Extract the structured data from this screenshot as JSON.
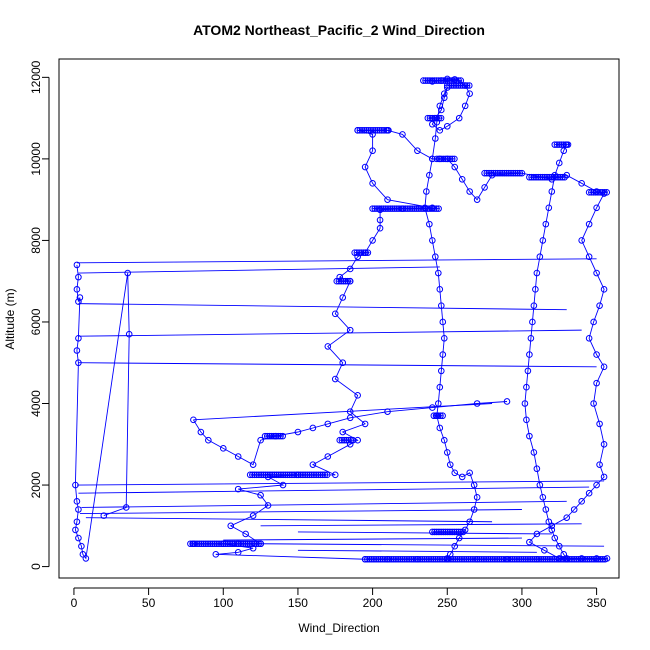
{
  "chart_data": {
    "type": "scatter",
    "title": "ATOM2 Northeast_Pacific_2 Wind_Direction",
    "xlabel": "Wind_Direction",
    "ylabel": "Altitude (m)",
    "xlim": [
      -10,
      365
    ],
    "ylim": [
      -280,
      12450
    ],
    "x_ticks": [
      0,
      50,
      100,
      150,
      200,
      250,
      300,
      350
    ],
    "y_ticks": [
      0,
      2000,
      4000,
      6000,
      8000,
      10000,
      12000
    ],
    "grid": false,
    "marker": "open-circle",
    "connected_with_lines": true,
    "series_color": "#0000ff",
    "series": [
      {
        "name": "",
        "points": [
          [
            95,
            300
          ],
          [
            110,
            350
          ],
          [
            120,
            450
          ],
          [
            100,
            560
          ],
          [
            80,
            560
          ],
          [
            110,
            560
          ],
          [
            125,
            560
          ],
          [
            115,
            800
          ],
          [
            105,
            1000
          ],
          [
            120,
            1250
          ],
          [
            130,
            1500
          ],
          [
            125,
            1750
          ],
          [
            110,
            1900
          ],
          [
            140,
            2000
          ],
          [
            130,
            2200
          ],
          [
            150,
            2250
          ],
          [
            175,
            2250
          ],
          [
            160,
            2500
          ],
          [
            170,
            2700
          ],
          [
            185,
            3000
          ],
          [
            190,
            3100
          ],
          [
            180,
            3300
          ],
          [
            195,
            3500
          ],
          [
            185,
            3800
          ],
          [
            190,
            4200
          ],
          [
            175,
            4600
          ],
          [
            180,
            5000
          ],
          [
            170,
            5400
          ],
          [
            185,
            5800
          ],
          [
            175,
            6200
          ],
          [
            180,
            6600
          ],
          [
            185,
            7000
          ],
          [
            178,
            7100
          ],
          [
            185,
            7300
          ],
          [
            190,
            7600
          ],
          [
            195,
            7700
          ],
          [
            200,
            8000
          ],
          [
            205,
            8300
          ],
          [
            205,
            8500
          ],
          [
            205,
            8750
          ],
          [
            220,
            8780
          ],
          [
            240,
            8800
          ],
          [
            210,
            9000
          ],
          [
            200,
            9400
          ],
          [
            195,
            9800
          ],
          [
            200,
            10200
          ],
          [
            200,
            10600
          ],
          [
            190,
            10700
          ],
          [
            210,
            10700
          ],
          [
            220,
            10600
          ],
          [
            230,
            10200
          ],
          [
            240,
            10000
          ],
          [
            245,
            10000
          ],
          [
            250,
            10000
          ],
          [
            255,
            9800
          ],
          [
            260,
            9500
          ],
          [
            265,
            9200
          ],
          [
            270,
            9000
          ],
          [
            275,
            9300
          ],
          [
            280,
            9600
          ],
          [
            300,
            9650
          ],
          [
            320,
            9500
          ],
          [
            330,
            9600
          ],
          [
            340,
            9400
          ],
          [
            350,
            9200
          ],
          [
            355,
            9150
          ],
          [
            350,
            8800
          ],
          [
            345,
            8400
          ],
          [
            340,
            8000
          ],
          [
            345,
            7600
          ],
          [
            350,
            7200
          ],
          [
            355,
            6800
          ],
          [
            352,
            6400
          ],
          [
            348,
            6000
          ],
          [
            345,
            5600
          ],
          [
            350,
            5200
          ],
          [
            355,
            4900
          ],
          [
            350,
            4500
          ],
          [
            348,
            4000
          ],
          [
            352,
            3500
          ],
          [
            355,
            3000
          ],
          [
            352,
            2500
          ],
          [
            355,
            2200
          ],
          [
            350,
            2000
          ],
          [
            345,
            1800
          ],
          [
            340,
            1600
          ],
          [
            335,
            1400
          ],
          [
            330,
            1200
          ],
          [
            320,
            1000
          ],
          [
            310,
            800
          ],
          [
            305,
            600
          ],
          [
            315,
            400
          ],
          [
            325,
            200
          ],
          [
            340,
            200
          ],
          [
            350,
            200
          ],
          [
            357,
            200
          ],
          [
            330,
            180
          ],
          [
            310,
            180
          ],
          [
            290,
            180
          ],
          [
            270,
            180
          ],
          [
            250,
            180
          ],
          [
            230,
            180
          ],
          [
            210,
            180
          ],
          [
            195,
            180
          ]
        ]
      },
      {
        "name": "",
        "points": [
          [
            240,
            11900
          ],
          [
            246,
            11920
          ],
          [
            250,
            11960
          ],
          [
            255,
            11950
          ],
          [
            262,
            11800
          ],
          [
            265,
            11600
          ],
          [
            262,
            11300
          ],
          [
            258,
            11000
          ],
          [
            250,
            10800
          ],
          [
            245,
            10700
          ],
          [
            240,
            10850
          ],
          [
            242,
            11000
          ],
          [
            246,
            11200
          ],
          [
            248,
            11500
          ],
          [
            250,
            11750
          ],
          [
            248,
            11600
          ],
          [
            245,
            11300
          ],
          [
            243,
            10900
          ],
          [
            242,
            10500
          ],
          [
            240,
            10000
          ],
          [
            238,
            9600
          ],
          [
            236,
            9200
          ],
          [
            235,
            8800
          ],
          [
            238,
            8400
          ],
          [
            240,
            8000
          ],
          [
            242,
            7600
          ],
          [
            244,
            7200
          ],
          [
            245,
            6800
          ],
          [
            246,
            6400
          ],
          [
            247,
            6000
          ],
          [
            248,
            5600
          ],
          [
            247,
            5200
          ],
          [
            246,
            4800
          ],
          [
            245,
            4400
          ],
          [
            244,
            4000
          ],
          [
            243,
            3700
          ],
          [
            245,
            3400
          ],
          [
            248,
            3100
          ],
          [
            250,
            2800
          ],
          [
            252,
            2500
          ],
          [
            255,
            2300
          ],
          [
            260,
            2200
          ],
          [
            265,
            2300
          ],
          [
            268,
            2000
          ],
          [
            270,
            1700
          ],
          [
            268,
            1400
          ],
          [
            265,
            1100
          ],
          [
            262,
            900
          ],
          [
            258,
            700
          ],
          [
            255,
            500
          ],
          [
            252,
            300
          ],
          [
            250,
            200
          ]
        ]
      },
      {
        "name": "",
        "points": [
          [
            330,
            10350
          ],
          [
            328,
            10200
          ],
          [
            325,
            9900
          ],
          [
            322,
            9600
          ],
          [
            320,
            9200
          ],
          [
            318,
            8800
          ],
          [
            316,
            8400
          ],
          [
            314,
            8000
          ],
          [
            312,
            7600
          ],
          [
            310,
            7200
          ],
          [
            309,
            6800
          ],
          [
            308,
            6400
          ],
          [
            307,
            6000
          ],
          [
            306,
            5600
          ],
          [
            305,
            5200
          ],
          [
            304,
            4800
          ],
          [
            303,
            4400
          ],
          [
            302,
            4000
          ],
          [
            303,
            3600
          ],
          [
            305,
            3200
          ],
          [
            308,
            2800
          ],
          [
            310,
            2400
          ],
          [
            312,
            2000
          ],
          [
            314,
            1700
          ],
          [
            316,
            1400
          ],
          [
            318,
            1100
          ],
          [
            320,
            900
          ],
          [
            322,
            700
          ],
          [
            325,
            500
          ],
          [
            328,
            300
          ],
          [
            330,
            200
          ]
        ]
      },
      {
        "name": "",
        "points": [
          [
            2,
            7400
          ],
          [
            3,
            7100
          ],
          [
            2,
            6800
          ],
          [
            3,
            6500
          ],
          [
            4,
            6600
          ],
          [
            3,
            5600
          ],
          [
            2,
            5300
          ],
          [
            3,
            5000
          ],
          [
            1,
            2000
          ],
          [
            2,
            1600
          ],
          [
            3,
            1400
          ],
          [
            2,
            1100
          ],
          [
            1,
            900
          ],
          [
            3,
            700
          ],
          [
            5,
            500
          ],
          [
            6,
            300
          ],
          [
            8,
            200
          ],
          [
            36,
            7200
          ],
          [
            37,
            5700
          ],
          [
            35,
            1450
          ],
          [
            20,
            1250
          ]
        ]
      },
      {
        "name": "",
        "points": [
          [
            80,
            3600
          ],
          [
            85,
            3300
          ],
          [
            90,
            3100
          ],
          [
            100,
            2900
          ],
          [
            110,
            2700
          ],
          [
            120,
            2500
          ],
          [
            125,
            3100
          ],
          [
            135,
            3200
          ],
          [
            150,
            3300
          ],
          [
            160,
            3400
          ],
          [
            170,
            3500
          ],
          [
            185,
            3650
          ],
          [
            210,
            3800
          ],
          [
            240,
            3900
          ],
          [
            270,
            4000
          ],
          [
            290,
            4050
          ]
        ]
      }
    ],
    "connector_segments": [
      [
        [
          2,
          7450
        ],
        [
          350,
          7550
        ]
      ],
      [
        [
          3,
          7200
        ],
        [
          245,
          7350
        ]
      ],
      [
        [
          3,
          6450
        ],
        [
          330,
          6300
        ]
      ],
      [
        [
          3,
          5650
        ],
        [
          340,
          5800
        ]
      ],
      [
        [
          3,
          5000
        ],
        [
          350,
          4900
        ]
      ],
      [
        [
          2,
          2000
        ],
        [
          355,
          2100
        ]
      ],
      [
        [
          3,
          1800
        ],
        [
          345,
          1950
        ]
      ],
      [
        [
          5,
          1450
        ],
        [
          330,
          1600
        ]
      ],
      [
        [
          4,
          1300
        ],
        [
          300,
          1400
        ]
      ],
      [
        [
          8,
          1200
        ],
        [
          280,
          1100
        ]
      ],
      [
        [
          125,
          1000
        ],
        [
          340,
          1050
        ]
      ],
      [
        [
          150,
          850
        ],
        [
          320,
          800
        ]
      ],
      [
        [
          100,
          650
        ],
        [
          300,
          700
        ]
      ],
      [
        [
          125,
          560
        ],
        [
          355,
          500
        ]
      ],
      [
        [
          150,
          400
        ],
        [
          310,
          350
        ]
      ],
      [
        [
          95,
          300
        ],
        [
          195,
          180
        ]
      ],
      [
        [
          80,
          3600
        ],
        [
          280,
          4000
        ]
      ],
      [
        [
          255,
          11950
        ],
        [
          262,
          11850
        ]
      ]
    ],
    "horizontal_streaks": [
      {
        "y": 560,
        "x_from": 78,
        "x_to": 126
      },
      {
        "y": 2250,
        "x_from": 118,
        "x_to": 170
      },
      {
        "y": 3200,
        "x_from": 128,
        "x_to": 140
      },
      {
        "y": 3100,
        "x_from": 178,
        "x_to": 188
      },
      {
        "y": 7000,
        "x_from": 176,
        "x_to": 186
      },
      {
        "y": 7700,
        "x_from": 188,
        "x_to": 198
      },
      {
        "y": 8780,
        "x_from": 200,
        "x_to": 245
      },
      {
        "y": 10700,
        "x_from": 190,
        "x_to": 212
      },
      {
        "y": 10000,
        "x_from": 243,
        "x_to": 255
      },
      {
        "y": 11920,
        "x_from": 234,
        "x_to": 260
      },
      {
        "y": 11800,
        "x_from": 250,
        "x_to": 265
      },
      {
        "y": 11000,
        "x_from": 237,
        "x_to": 247
      },
      {
        "y": 9650,
        "x_from": 275,
        "x_to": 300
      },
      {
        "y": 9550,
        "x_from": 305,
        "x_to": 330
      },
      {
        "y": 10350,
        "x_from": 322,
        "x_to": 332
      },
      {
        "y": 9180,
        "x_from": 345,
        "x_to": 357
      },
      {
        "y": 3700,
        "x_from": 241,
        "x_to": 247
      },
      {
        "y": 850,
        "x_from": 240,
        "x_to": 262
      },
      {
        "y": 180,
        "x_from": 195,
        "x_to": 357
      }
    ]
  }
}
